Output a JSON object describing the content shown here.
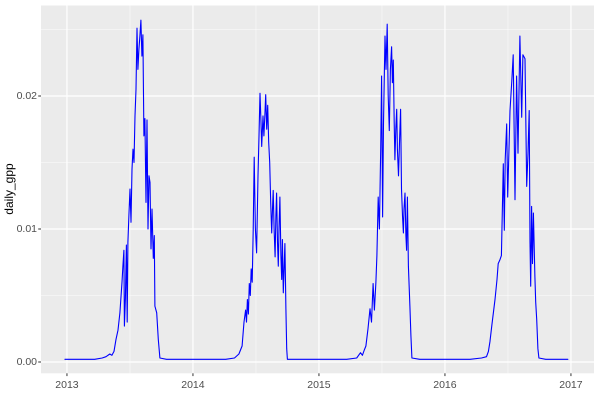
{
  "figure": {
    "background": "#FFFFFF"
  },
  "chart_data": {
    "type": "line",
    "title": "",
    "xlabel": "",
    "ylabel": "daily_gpp",
    "legend": "none",
    "grid": "major+minor",
    "x_ticks": [
      2013,
      2014,
      2015,
      2016,
      2017
    ],
    "x_tick_labels": [
      "2013",
      "2014",
      "2015",
      "2016",
      "2017"
    ],
    "x_minor_ticks": [
      2013.5,
      2014.5,
      2015.5,
      2016.5
    ],
    "y_ticks": [
      0,
      0.01,
      0.02
    ],
    "y_tick_labels": [
      "0.00",
      "0.01",
      "0.02"
    ],
    "y_minor_ticks": [
      0.005,
      0.015,
      0.025
    ],
    "xlim": [
      2012.794,
      2017.183
    ],
    "ylim": [
      -0.00085,
      0.026804
    ],
    "colors": {
      "figure_bg": "#FFFFFF",
      "panel_bg": "#EBEBEB",
      "grid_major": "#FFFFFF",
      "grid_minor": "#FFFFFF",
      "line": "#0000FF",
      "tick": "#333333",
      "tick_label": "#4D4D4D",
      "axis_title": "#000000"
    },
    "series": [
      {
        "name": "daily_gpp",
        "color": "#0000FF",
        "points": [
          [
            2012.984,
            0.0002
          ],
          [
            2013.06,
            0.0002
          ],
          [
            2013.14,
            0.0002
          ],
          [
            2013.22,
            0.0002
          ],
          [
            2013.28,
            0.0003
          ],
          [
            2013.31,
            0.0004
          ],
          [
            2013.34,
            0.0006
          ],
          [
            2013.357,
            0.0005
          ],
          [
            2013.373,
            0.0008
          ],
          [
            2013.389,
            0.0017
          ],
          [
            2013.405,
            0.0024
          ],
          [
            2013.42,
            0.0037
          ],
          [
            2013.437,
            0.006
          ],
          [
            2013.444,
            0.0072
          ],
          [
            2013.452,
            0.0084
          ],
          [
            2013.456,
            0.0027
          ],
          [
            2013.464,
            0.0048
          ],
          [
            2013.472,
            0.0088
          ],
          [
            2013.478,
            0.003
          ],
          [
            2013.484,
            0.009
          ],
          [
            2013.492,
            0.011
          ],
          [
            2013.5,
            0.013
          ],
          [
            2013.508,
            0.0105
          ],
          [
            2013.516,
            0.0145
          ],
          [
            2013.524,
            0.016
          ],
          [
            2013.532,
            0.015
          ],
          [
            2013.54,
            0.0185
          ],
          [
            2013.548,
            0.0205
          ],
          [
            2013.556,
            0.0251
          ],
          [
            2013.563,
            0.022
          ],
          [
            2013.571,
            0.0235
          ],
          [
            2013.579,
            0.0245
          ],
          [
            2013.587,
            0.0257
          ],
          [
            2013.595,
            0.023
          ],
          [
            2013.603,
            0.0246
          ],
          [
            2013.611,
            0.017
          ],
          [
            2013.619,
            0.0183
          ],
          [
            2013.627,
            0.012
          ],
          [
            2013.635,
            0.0182
          ],
          [
            2013.643,
            0.01
          ],
          [
            2013.651,
            0.014
          ],
          [
            2013.659,
            0.0135
          ],
          [
            2013.667,
            0.0085
          ],
          [
            2013.675,
            0.0115
          ],
          [
            2013.685,
            0.0078
          ],
          [
            2013.693,
            0.0095
          ],
          [
            2013.698,
            0.0042
          ],
          [
            2013.712,
            0.0037
          ],
          [
            2013.725,
            0.0017
          ],
          [
            2013.738,
            0.0003
          ],
          [
            2013.79,
            0.0002
          ],
          [
            2013.88,
            0.0002
          ],
          [
            2013.97,
            0.0002
          ],
          [
            2014.06,
            0.0002
          ],
          [
            2014.16,
            0.0002
          ],
          [
            2014.26,
            0.0002
          ],
          [
            2014.33,
            0.0003
          ],
          [
            2014.365,
            0.0006
          ],
          [
            2014.39,
            0.0012
          ],
          [
            2014.405,
            0.003
          ],
          [
            2014.418,
            0.0039
          ],
          [
            2014.425,
            0.003
          ],
          [
            2014.432,
            0.0047
          ],
          [
            2014.44,
            0.0036
          ],
          [
            2014.447,
            0.0059
          ],
          [
            2014.455,
            0.005
          ],
          [
            2014.462,
            0.007
          ],
          [
            2014.47,
            0.006
          ],
          [
            2014.478,
            0.0099
          ],
          [
            2014.486,
            0.0154
          ],
          [
            2014.496,
            0.01
          ],
          [
            2014.505,
            0.0082
          ],
          [
            2014.516,
            0.014
          ],
          [
            2014.524,
            0.017
          ],
          [
            2014.532,
            0.0202
          ],
          [
            2014.54,
            0.018
          ],
          [
            2014.546,
            0.0162
          ],
          [
            2014.556,
            0.0185
          ],
          [
            2014.563,
            0.017
          ],
          [
            2014.571,
            0.0186
          ],
          [
            2014.577,
            0.0201
          ],
          [
            2014.585,
            0.0175
          ],
          [
            2014.593,
            0.0193
          ],
          [
            2014.601,
            0.0165
          ],
          [
            2014.609,
            0.015
          ],
          [
            2014.617,
            0.012
          ],
          [
            2014.625,
            0.0097
          ],
          [
            2014.631,
            0.0115
          ],
          [
            2014.637,
            0.0129
          ],
          [
            2014.644,
            0.01
          ],
          [
            2014.652,
            0.0079
          ],
          [
            2014.658,
            0.011
          ],
          [
            2014.664,
            0.0127
          ],
          [
            2014.671,
            0.009
          ],
          [
            2014.677,
            0.0072
          ],
          [
            2014.683,
            0.01
          ],
          [
            2014.69,
            0.0124
          ],
          [
            2014.698,
            0.008
          ],
          [
            2014.704,
            0.0062
          ],
          [
            2014.71,
            0.0092
          ],
          [
            2014.717,
            0.0052
          ],
          [
            2014.724,
            0.0072
          ],
          [
            2014.73,
            0.0089
          ],
          [
            2014.738,
            0.004
          ],
          [
            2014.744,
            0.001
          ],
          [
            2014.75,
            0.0002
          ],
          [
            2014.82,
            0.0002
          ],
          [
            2014.92,
            0.0002
          ],
          [
            2015.02,
            0.0002
          ],
          [
            2015.12,
            0.0002
          ],
          [
            2015.22,
            0.0002
          ],
          [
            2015.3,
            0.0003
          ],
          [
            2015.33,
            0.0007
          ],
          [
            2015.345,
            0.0005
          ],
          [
            2015.36,
            0.0009
          ],
          [
            2015.373,
            0.0012
          ],
          [
            2015.389,
            0.0025
          ],
          [
            2015.405,
            0.004
          ],
          [
            2015.417,
            0.003
          ],
          [
            2015.43,
            0.0059
          ],
          [
            2015.44,
            0.0039
          ],
          [
            2015.452,
            0.006
          ],
          [
            2015.46,
            0.008
          ],
          [
            2015.47,
            0.0124
          ],
          [
            2015.48,
            0.01
          ],
          [
            2015.49,
            0.016
          ],
          [
            2015.497,
            0.0215
          ],
          [
            2015.505,
            0.0109
          ],
          [
            2015.512,
            0.018
          ],
          [
            2015.524,
            0.0245
          ],
          [
            2015.532,
            0.022
          ],
          [
            2015.542,
            0.0254
          ],
          [
            2015.55,
            0.02
          ],
          [
            2015.558,
            0.0174
          ],
          [
            2015.567,
            0.022
          ],
          [
            2015.577,
            0.0237
          ],
          [
            2015.583,
            0.021
          ],
          [
            2015.59,
            0.0227
          ],
          [
            2015.597,
            0.018
          ],
          [
            2015.603,
            0.0152
          ],
          [
            2015.61,
            0.0175
          ],
          [
            2015.617,
            0.019
          ],
          [
            2015.623,
            0.016
          ],
          [
            2015.631,
            0.014
          ],
          [
            2015.639,
            0.0165
          ],
          [
            2015.648,
            0.019
          ],
          [
            2015.655,
            0.013
          ],
          [
            2015.663,
            0.011
          ],
          [
            2015.67,
            0.0097
          ],
          [
            2015.675,
            0.0115
          ],
          [
            2015.683,
            0.0127
          ],
          [
            2015.69,
            0.0095
          ],
          [
            2015.696,
            0.0084
          ],
          [
            2015.702,
            0.0124
          ],
          [
            2015.71,
            0.0072
          ],
          [
            2015.717,
            0.0054
          ],
          [
            2015.722,
            0.0042
          ],
          [
            2015.73,
            0.002
          ],
          [
            2015.738,
            0.0003
          ],
          [
            2015.8,
            0.0002
          ],
          [
            2015.9,
            0.0002
          ],
          [
            2016.0,
            0.0002
          ],
          [
            2016.1,
            0.0002
          ],
          [
            2016.2,
            0.0002
          ],
          [
            2016.29,
            0.0003
          ],
          [
            2016.33,
            0.0004
          ],
          [
            2016.345,
            0.0008
          ],
          [
            2016.357,
            0.0015
          ],
          [
            2016.373,
            0.0028
          ],
          [
            2016.397,
            0.0047
          ],
          [
            2016.413,
            0.0062
          ],
          [
            2016.423,
            0.0074
          ],
          [
            2016.437,
            0.0077
          ],
          [
            2016.448,
            0.008
          ],
          [
            2016.463,
            0.0149
          ],
          [
            2016.471,
            0.0099
          ],
          [
            2016.478,
            0.0152
          ],
          [
            2016.49,
            0.0179
          ],
          [
            2016.498,
            0.0124
          ],
          [
            2016.516,
            0.0189
          ],
          [
            2016.53,
            0.021
          ],
          [
            2016.542,
            0.0231
          ],
          [
            2016.556,
            0.0122
          ],
          [
            2016.569,
            0.0215
          ],
          [
            2016.58,
            0.0157
          ],
          [
            2016.595,
            0.0245
          ],
          [
            2016.609,
            0.0184
          ],
          [
            2016.619,
            0.0231
          ],
          [
            2016.635,
            0.0228
          ],
          [
            2016.649,
            0.0132
          ],
          [
            2016.659,
            0.0157
          ],
          [
            2016.669,
            0.0189
          ],
          [
            2016.675,
            0.009
          ],
          [
            2016.681,
            0.0057
          ],
          [
            2016.688,
            0.0117
          ],
          [
            2016.695,
            0.0074
          ],
          [
            2016.702,
            0.0112
          ],
          [
            2016.714,
            0.0064
          ],
          [
            2016.72,
            0.0045
          ],
          [
            2016.728,
            0.0032
          ],
          [
            2016.738,
            0.001
          ],
          [
            2016.746,
            0.0003
          ],
          [
            2016.8,
            0.0002
          ],
          [
            2016.87,
            0.0002
          ],
          [
            2016.93,
            0.0002
          ],
          [
            2016.976,
            0.0002
          ]
        ]
      }
    ]
  }
}
